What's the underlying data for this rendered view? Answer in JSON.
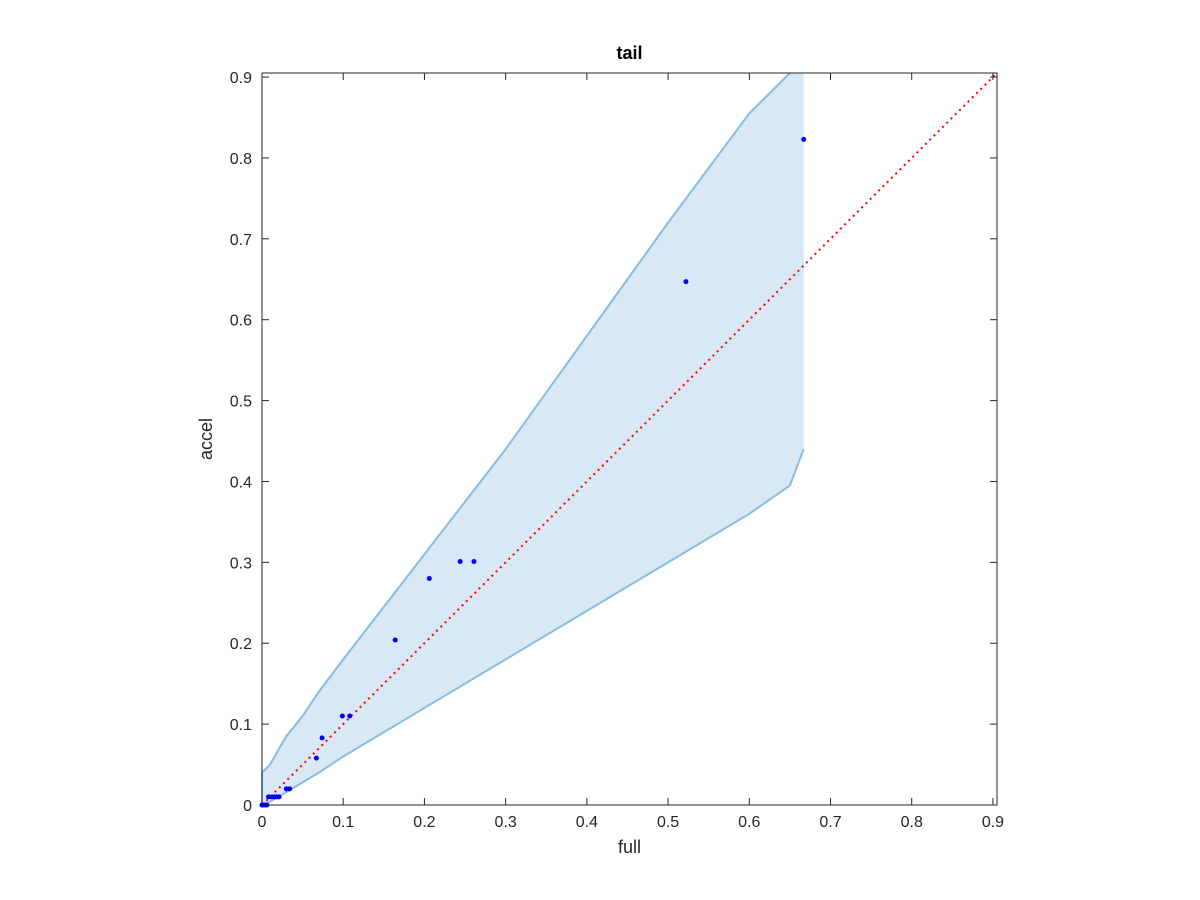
{
  "chart_data": {
    "type": "scatter",
    "title": "tail",
    "xlabel": "full",
    "ylabel": "accel",
    "xlim": [
      0,
      0.905
    ],
    "ylim": [
      0,
      0.905
    ],
    "xticks": [
      0,
      0.1,
      0.2,
      0.3,
      0.4,
      0.5,
      0.6,
      0.7,
      0.8,
      0.9
    ],
    "yticks": [
      0,
      0.1,
      0.2,
      0.3,
      0.4,
      0.5,
      0.6,
      0.7,
      0.8,
      0.9
    ],
    "xtick_labels": [
      "0",
      "0.1",
      "0.2",
      "0.3",
      "0.4",
      "0.5",
      "0.6",
      "0.7",
      "0.8",
      "0.9"
    ],
    "ytick_labels": [
      "0",
      "0.1",
      "0.2",
      "0.3",
      "0.4",
      "0.5",
      "0.6",
      "0.7",
      "0.8",
      "0.9"
    ],
    "grid": false,
    "band": {
      "x": [
        0,
        0.005,
        0.01,
        0.02,
        0.03,
        0.05,
        0.07,
        0.1,
        0.15,
        0.2,
        0.3,
        0.4,
        0.5,
        0.6,
        0.65,
        0.667
      ],
      "upper": [
        0.04,
        0.045,
        0.05,
        0.068,
        0.085,
        0.11,
        0.14,
        0.18,
        0.245,
        0.31,
        0.44,
        0.58,
        0.72,
        0.855,
        0.905,
        0.905
      ],
      "lower": [
        0,
        0.002,
        0.004,
        0.01,
        0.016,
        0.028,
        0.04,
        0.06,
        0.09,
        0.12,
        0.18,
        0.24,
        0.3,
        0.36,
        0.395,
        0.44
      ],
      "fill": "#d9e8f5",
      "stroke": "#86bde2"
    },
    "reference_line": {
      "x": [
        0,
        0.905
      ],
      "y": [
        0,
        0.905
      ],
      "color": "#ff0000",
      "style": "dotted"
    },
    "series": [
      {
        "color": "#0000ff",
        "points": [
          [
            0.0,
            0.0
          ],
          [
            0.002,
            0.0
          ],
          [
            0.004,
            0.0
          ],
          [
            0.006,
            0.0
          ],
          [
            0.008,
            0.01
          ],
          [
            0.012,
            0.01
          ],
          [
            0.015,
            0.01
          ],
          [
            0.018,
            0.01
          ],
          [
            0.021,
            0.01
          ],
          [
            0.03,
            0.02
          ],
          [
            0.034,
            0.02
          ],
          [
            0.067,
            0.058
          ],
          [
            0.074,
            0.083
          ],
          [
            0.099,
            0.11
          ],
          [
            0.108,
            0.11
          ],
          [
            0.164,
            0.204
          ],
          [
            0.206,
            0.28
          ],
          [
            0.244,
            0.301
          ],
          [
            0.261,
            0.301
          ],
          [
            0.522,
            0.647
          ],
          [
            0.667,
            0.823
          ]
        ]
      }
    ]
  }
}
